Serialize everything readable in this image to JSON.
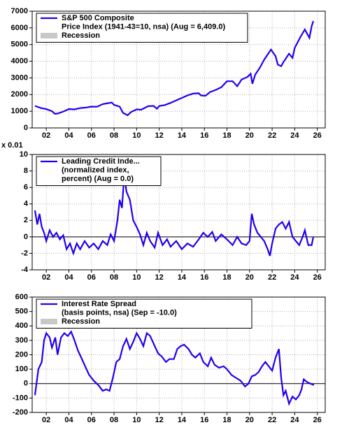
{
  "chart_data": [
    {
      "type": "line",
      "x": [
        2001.0,
        2001.5,
        2002.0,
        2002.5,
        2002.75,
        2003.0,
        2003.5,
        2004.0,
        2004.5,
        2005.0,
        2005.5,
        2006.0,
        2006.5,
        2007.0,
        2007.5,
        2007.8,
        2008.0,
        2008.5,
        2008.8,
        2009.2,
        2009.5,
        2010.0,
        2010.4,
        2011.0,
        2011.5,
        2011.8,
        2012.0,
        2012.5,
        2013.0,
        2013.5,
        2014.0,
        2014.5,
        2015.0,
        2015.5,
        2015.7,
        2016.1,
        2016.5,
        2017.0,
        2017.5,
        2018.0,
        2018.5,
        2018.9,
        2019.3,
        2019.8,
        2020.1,
        2020.25,
        2020.5,
        2020.9,
        2021.3,
        2021.9,
        2022.3,
        2022.5,
        2022.8,
        2023.0,
        2023.5,
        2023.8,
        2024.0,
        2024.5,
        2024.9,
        2025.3,
        2025.5,
        2025.65
      ],
      "series": [
        {
          "name": "S&P 500 Composite",
          "description": [
            "Price Index (1941-43=10, nsa) (Aug = 6,409.0)"
          ],
          "color": "#2200ee",
          "values": [
            1320,
            1200,
            1130,
            1000,
            850,
            860,
            980,
            1130,
            1110,
            1190,
            1220,
            1280,
            1270,
            1430,
            1490,
            1520,
            1380,
            1280,
            900,
            760,
            950,
            1110,
            1090,
            1300,
            1320,
            1150,
            1310,
            1370,
            1500,
            1650,
            1800,
            1950,
            2060,
            2080,
            1950,
            1930,
            2150,
            2280,
            2440,
            2800,
            2800,
            2500,
            2900,
            3050,
            3250,
            2650,
            3200,
            3600,
            4100,
            4700,
            4300,
            3800,
            3700,
            3950,
            4450,
            4200,
            4800,
            5450,
            5900,
            5400,
            6100,
            6409
          ]
        }
      ],
      "legend_extra": {
        "label": "Recession",
        "color": "#c8c8c8"
      },
      "xlim": [
        2000.75,
        2026.7
      ],
      "xticks": [
        {
          "value": 2002,
          "label": "02"
        },
        {
          "value": 2004,
          "label": "04"
        },
        {
          "value": 2006,
          "label": "06"
        },
        {
          "value": 2008,
          "label": "08"
        },
        {
          "value": 2010,
          "label": "10"
        },
        {
          "value": 2012,
          "label": "12"
        },
        {
          "value": 2014,
          "label": "14"
        },
        {
          "value": 2016,
          "label": "16"
        },
        {
          "value": 2018,
          "label": "18"
        },
        {
          "value": 2020,
          "label": "20"
        },
        {
          "value": 2022,
          "label": "22"
        },
        {
          "value": 2024,
          "label": "24"
        },
        {
          "value": 2026,
          "label": "26"
        }
      ],
      "ylim": [
        0,
        7000
      ],
      "yticks": [
        0,
        1000,
        2000,
        3000,
        4000,
        5000,
        6000,
        7000
      ],
      "grid": true,
      "zero_line": false
    },
    {
      "type": "line",
      "y_unit_label": "x 0.01",
      "x": [
        2001.0,
        2001.2,
        2001.4,
        2001.6,
        2001.8,
        2002.0,
        2002.3,
        2002.6,
        2002.9,
        2003.2,
        2003.5,
        2003.8,
        2004.1,
        2004.4,
        2004.7,
        2005.0,
        2005.4,
        2005.8,
        2006.2,
        2006.6,
        2007.0,
        2007.4,
        2007.7,
        2008.0,
        2008.3,
        2008.5,
        2008.7,
        2008.9,
        2009.1,
        2009.4,
        2009.7,
        2010.0,
        2010.3,
        2010.6,
        2010.9,
        2011.2,
        2011.6,
        2011.9,
        2012.3,
        2012.7,
        2013.0,
        2013.5,
        2014.0,
        2014.5,
        2015.0,
        2015.5,
        2015.9,
        2016.3,
        2016.7,
        2017.0,
        2017.5,
        2018.0,
        2018.5,
        2018.9,
        2019.3,
        2019.7,
        2020.0,
        2020.2,
        2020.4,
        2020.7,
        2021.0,
        2021.3,
        2021.6,
        2021.8,
        2022.0,
        2022.3,
        2022.6,
        2022.9,
        2023.2,
        2023.5,
        2023.8,
        2024.1,
        2024.4,
        2024.7,
        2024.9,
        2025.2,
        2025.5,
        2025.65
      ],
      "series": [
        {
          "name": "Leading Credit Inde...",
          "description": [
            "(normalized index,",
            "percent)  (Aug = 0.0)"
          ],
          "color": "#2200ee",
          "values": [
            3.2,
            1.5,
            2.8,
            1.2,
            0.5,
            -0.5,
            0.8,
            0.0,
            0.5,
            -0.3,
            0.2,
            -1.5,
            -0.8,
            -2.0,
            -0.8,
            -1.5,
            -0.5,
            -1.3,
            -0.8,
            -1.5,
            -0.5,
            -1.0,
            0.3,
            -0.5,
            2.0,
            4.5,
            3.5,
            7.5,
            5.5,
            4.5,
            2.0,
            1.2,
            0.3,
            -1.0,
            0.5,
            -0.5,
            -1.3,
            0.5,
            -1.0,
            -0.3,
            -1.2,
            -0.5,
            -1.5,
            -0.8,
            -1.2,
            -0.3,
            0.5,
            0.0,
            0.6,
            -0.5,
            0.3,
            -0.3,
            -1.0,
            0.0,
            -0.8,
            -1.0,
            -0.5,
            2.8,
            1.5,
            0.5,
            0.0,
            -0.5,
            -1.5,
            -2.3,
            -0.8,
            1.0,
            1.5,
            1.8,
            1.0,
            1.8,
            0.0,
            -0.5,
            -1.0,
            0.0,
            0.8,
            -1.0,
            -1.0,
            0.0
          ]
        }
      ],
      "xlim": [
        2000.75,
        2026.7
      ],
      "xticks": [
        {
          "value": 2002,
          "label": "02"
        },
        {
          "value": 2004,
          "label": "04"
        },
        {
          "value": 2006,
          "label": "06"
        },
        {
          "value": 2008,
          "label": "08"
        },
        {
          "value": 2010,
          "label": "10"
        },
        {
          "value": 2012,
          "label": "12"
        },
        {
          "value": 2014,
          "label": "14"
        },
        {
          "value": 2016,
          "label": "16"
        },
        {
          "value": 2018,
          "label": "18"
        },
        {
          "value": 2020,
          "label": "20"
        },
        {
          "value": 2022,
          "label": "22"
        },
        {
          "value": 2024,
          "label": "24"
        },
        {
          "value": 2026,
          "label": "26"
        }
      ],
      "ylim": [
        -4,
        10
      ],
      "yticks": [
        -4,
        -2,
        0,
        2,
        4,
        6,
        8,
        10
      ],
      "grid": true,
      "zero_line": true
    },
    {
      "type": "line",
      "x": [
        2001.0,
        2001.3,
        2001.6,
        2001.8,
        2002.0,
        2002.3,
        2002.5,
        2002.8,
        2003.0,
        2003.3,
        2003.6,
        2003.9,
        2004.2,
        2004.5,
        2004.8,
        2005.1,
        2005.5,
        2005.8,
        2006.2,
        2006.6,
        2007.0,
        2007.3,
        2007.6,
        2007.9,
        2008.2,
        2008.5,
        2008.8,
        2009.1,
        2009.4,
        2009.7,
        2010.0,
        2010.3,
        2010.6,
        2010.9,
        2011.2,
        2011.6,
        2011.9,
        2012.2,
        2012.6,
        2012.9,
        2013.3,
        2013.6,
        2013.9,
        2014.2,
        2014.6,
        2014.9,
        2015.2,
        2015.6,
        2015.9,
        2016.3,
        2016.6,
        2016.9,
        2017.3,
        2017.7,
        2018.0,
        2018.4,
        2018.8,
        2019.2,
        2019.6,
        2019.9,
        2020.2,
        2020.5,
        2020.8,
        2021.1,
        2021.4,
        2021.7,
        2022.0,
        2022.3,
        2022.6,
        2022.8,
        2023.0,
        2023.2,
        2023.5,
        2023.8,
        2024.1,
        2024.4,
        2024.6,
        2024.8,
        2025.1,
        2025.4,
        2025.7
      ],
      "series": [
        {
          "name": "Interest Rate Spread",
          "description": [
            "(basis points, nsa) (Sep = -10.0)"
          ],
          "color": "#2200ee",
          "values": [
            -80,
            100,
            150,
            300,
            350,
            320,
            250,
            320,
            200,
            320,
            350,
            330,
            360,
            300,
            230,
            180,
            110,
            60,
            20,
            -10,
            -50,
            -40,
            -50,
            40,
            150,
            170,
            260,
            310,
            240,
            290,
            350,
            310,
            260,
            350,
            330,
            260,
            210,
            190,
            150,
            170,
            170,
            240,
            260,
            270,
            240,
            200,
            180,
            210,
            150,
            120,
            180,
            130,
            110,
            120,
            100,
            60,
            40,
            20,
            -20,
            0,
            50,
            60,
            80,
            120,
            150,
            120,
            90,
            180,
            240,
            40,
            -80,
            -50,
            -140,
            -90,
            -110,
            -80,
            -40,
            30,
            10,
            0,
            -10
          ]
        }
      ],
      "legend_extra": {
        "label": "Recession",
        "color": "#c8c8c8"
      },
      "xlim": [
        2000.75,
        2026.7
      ],
      "xticks": [
        {
          "value": 2002,
          "label": "02"
        },
        {
          "value": 2004,
          "label": "04"
        },
        {
          "value": 2006,
          "label": "06"
        },
        {
          "value": 2008,
          "label": "08"
        },
        {
          "value": 2010,
          "label": "10"
        },
        {
          "value": 2012,
          "label": "12"
        },
        {
          "value": 2014,
          "label": "14"
        },
        {
          "value": 2016,
          "label": "16"
        },
        {
          "value": 2018,
          "label": "18"
        },
        {
          "value": 2020,
          "label": "20"
        },
        {
          "value": 2022,
          "label": "22"
        },
        {
          "value": 2024,
          "label": "24"
        },
        {
          "value": 2026,
          "label": "26"
        }
      ],
      "ylim": [
        -200,
        600
      ],
      "yticks": [
        -200,
        -100,
        0,
        100,
        200,
        300,
        400,
        500,
        600
      ],
      "grid": true,
      "zero_line": true
    }
  ]
}
